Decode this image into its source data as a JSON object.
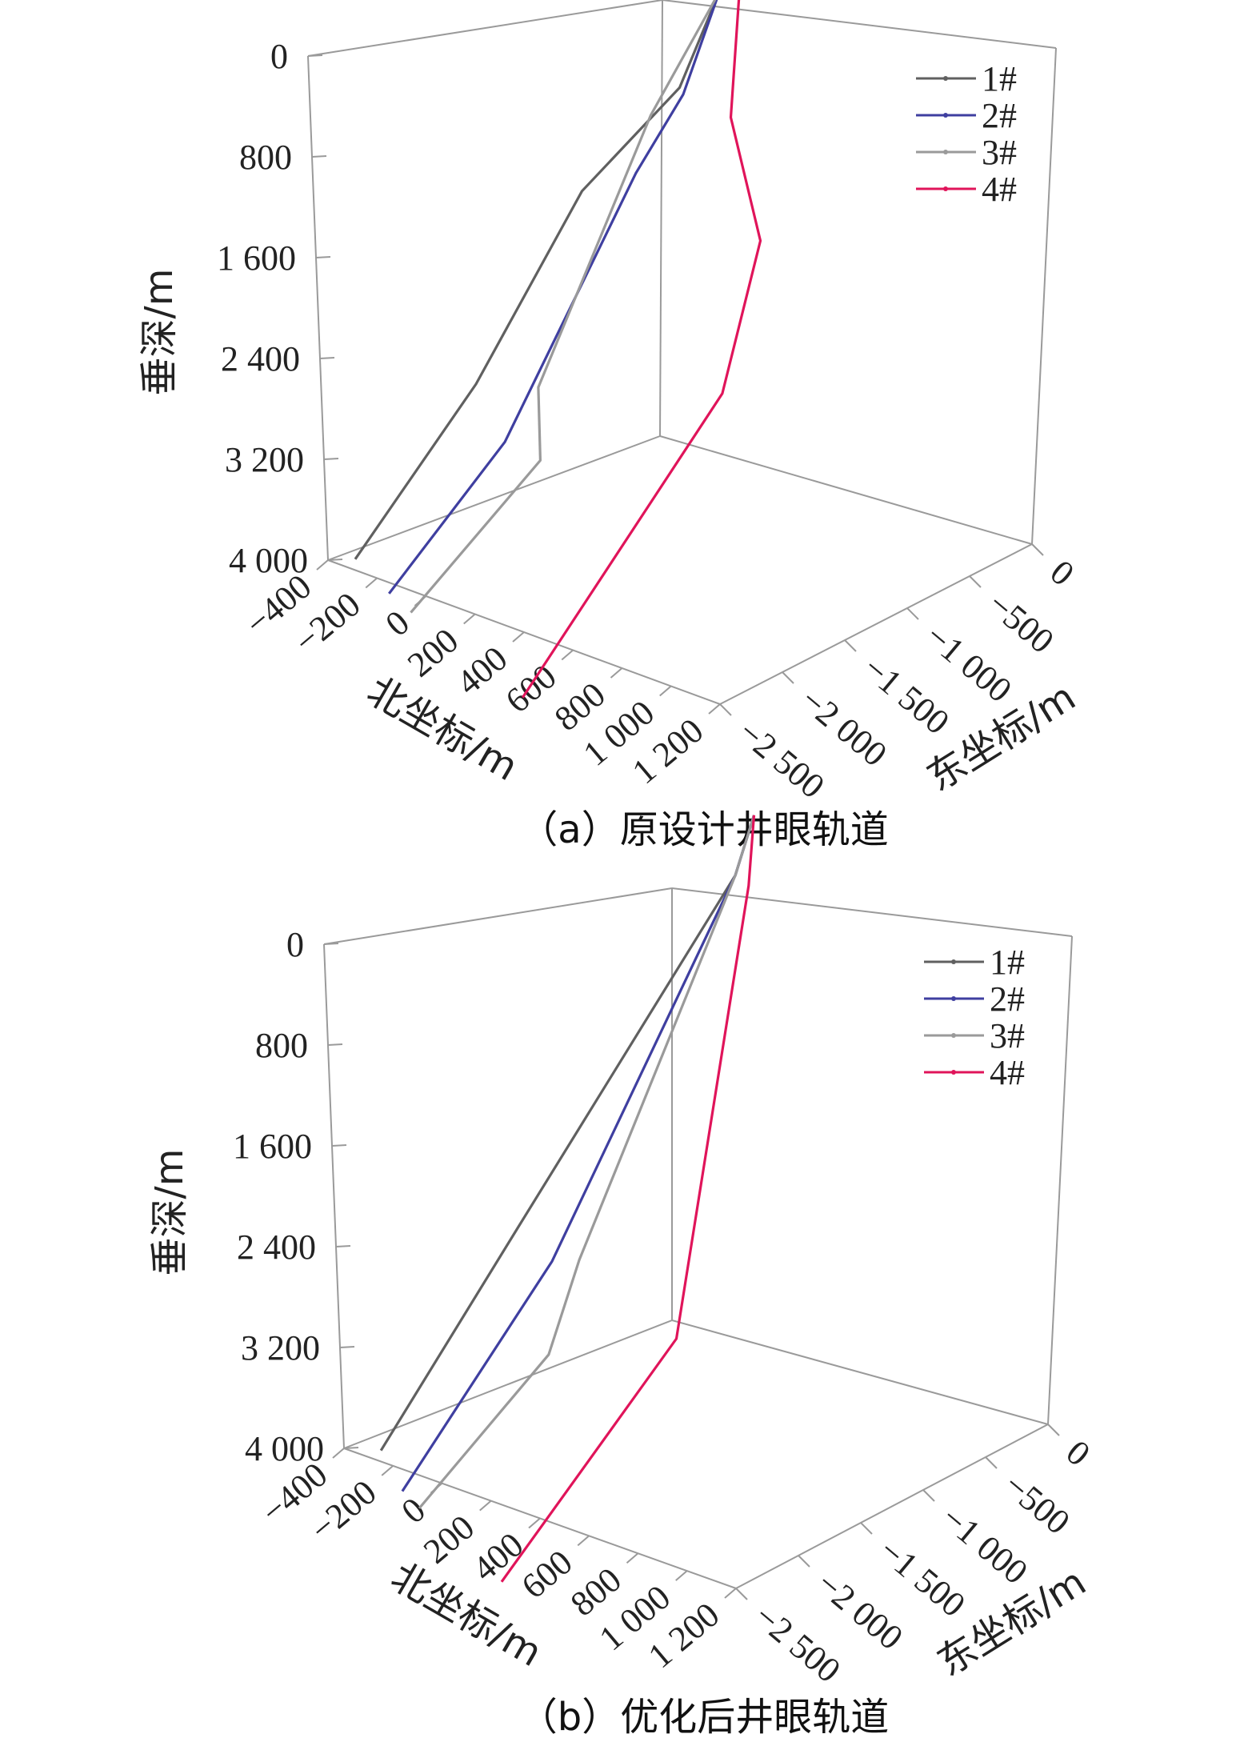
{
  "chart_data": [
    {
      "type": "line",
      "subtype": "3d-wellbore-trajectory",
      "caption": "（a）原设计井眼轨道",
      "zlabel": "垂深/m",
      "xlabel": "北坐标/m",
      "ylabel": "东坐标/m",
      "z_ticks": [
        "0",
        "800",
        "1 600",
        "2 400",
        "3 200",
        "4 000"
      ],
      "x_ticks": [
        "−400",
        "−200",
        "0",
        "200",
        "400",
        "600",
        "800",
        "1 000",
        "1 200"
      ],
      "y_ticks": [
        "0",
        "−500",
        "−1 000",
        "−1 500",
        "−2 000",
        "−2 500"
      ],
      "zlim": [
        0,
        4000
      ],
      "xlim": [
        -400,
        1200
      ],
      "ylim": [
        0,
        -2500
      ],
      "z_reversed": true,
      "legend_position": "top-right",
      "series": [
        {
          "name": "1#",
          "color": "#606060",
          "north": [
            0,
            0,
            -60,
            -280,
            -280,
            -340
          ],
          "east": [
            0,
            -150,
            -350,
            -700,
            -1550,
            -2400
          ],
          "depth": [
            0,
            400,
            1100,
            1900,
            3000,
            4000
          ]
        },
        {
          "name": "2#",
          "color": "#3f3fa0",
          "north": [
            0,
            0,
            -20,
            -60,
            -60,
            -100
          ],
          "east": [
            0,
            -150,
            -400,
            -700,
            -1750,
            -2600
          ],
          "depth": [
            0,
            400,
            1100,
            1600,
            3200,
            4000
          ]
        },
        {
          "name": "3#",
          "color": "#9a9a9a",
          "north": [
            0,
            0,
            0,
            0,
            110,
            40
          ],
          "east": [
            0,
            -150,
            -700,
            -1600,
            -1800,
            -2700
          ],
          "depth": [
            0,
            400,
            1100,
            2800,
            3200,
            4000
          ]
        },
        {
          "name": "4#",
          "color": "#e0145a",
          "north": [
            0,
            80,
            200,
            550,
            700,
            700
          ],
          "east": [
            0,
            -150,
            -450,
            -900,
            -1500,
            -3100
          ],
          "depth": [
            0,
            400,
            1100,
            1600,
            2400,
            4000
          ]
        }
      ]
    },
    {
      "type": "line",
      "subtype": "3d-wellbore-trajectory",
      "caption": "（b）优化后井眼轨道",
      "zlabel": "垂深/m",
      "xlabel": "北坐标/m",
      "ylabel": "东坐标/m",
      "z_ticks": [
        "0",
        "800",
        "1 600",
        "2 400",
        "3 200",
        "4 000"
      ],
      "x_ticks": [
        "−400",
        "−200",
        "0",
        "200",
        "400",
        "600",
        "800",
        "1 000",
        "1 200"
      ],
      "y_ticks": [
        "0",
        "−500",
        "−1 000",
        "−1 500",
        "−2 000",
        "−2 500"
      ],
      "zlim": [
        0,
        4000
      ],
      "xlim": [
        -400,
        1200
      ],
      "ylim": [
        0,
        -2500
      ],
      "z_reversed": true,
      "legend_position": "top-right",
      "series": [
        {
          "name": "1#",
          "color": "#606060",
          "north": [
            0,
            0,
            -300,
            -300
          ],
          "east": [
            0,
            -150,
            -1300,
            -2400
          ],
          "depth": [
            0,
            400,
            2800,
            4000
          ]
        },
        {
          "name": "2#",
          "color": "#3f3fa0",
          "north": [
            0,
            0,
            -60,
            -60
          ],
          "east": [
            0,
            -150,
            -1500,
            -2700
          ],
          "depth": [
            0,
            400,
            2800,
            4000
          ]
        },
        {
          "name": "3#",
          "color": "#9a9a9a",
          "north": [
            0,
            0,
            0,
            130,
            60
          ],
          "east": [
            0,
            -150,
            -1400,
            -1900,
            -2800
          ],
          "depth": [
            0,
            400,
            2800,
            3200,
            4000
          ]
        },
        {
          "name": "4#",
          "color": "#e0145a",
          "north": [
            0,
            80,
            600,
            600
          ],
          "east": [
            0,
            -200,
            -1800,
            -3200
          ],
          "depth": [
            0,
            400,
            2800,
            4000
          ]
        }
      ]
    }
  ]
}
